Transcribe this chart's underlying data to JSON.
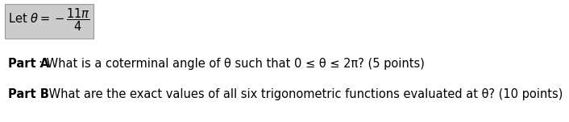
{
  "page_background": "#ffffff",
  "box_bg": "#cccccc",
  "box_edge": "#999999",
  "part_a_bold": "Part A",
  "part_a_rest": ": What is a coterminal angle of θ such that 0 ≤ θ ≤ 2π? (5 points)",
  "part_b_bold": "Part B",
  "part_b_rest": ": What are the exact values of all six trigonometric functions evaluated at θ? (10 points)",
  "font_size_main": 10.5,
  "font_size_box": 10.5,
  "text_color": "#333333"
}
